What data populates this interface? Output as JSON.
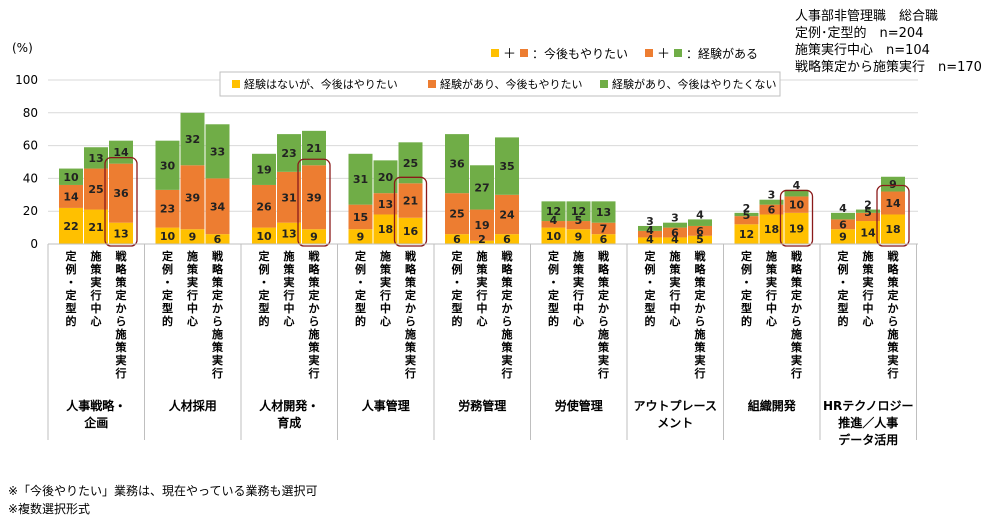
{
  "info_box": {
    "line1": "人事部非管理職　総合職",
    "line2": "定例･定型的　n=204",
    "line3": "施策実行中心　n=104",
    "line4": "戦略策定から施策実行　n=170"
  },
  "notes": {
    "note1": "※「今後やりたい」業務は、現在やっている業務も選択可",
    "note2": "※複数選択形式"
  },
  "colors": {
    "yellow": "#FFC000",
    "orange": "#ED7D31",
    "green": "#70AD47",
    "highlight": "#8B1A1A",
    "grid": "#D9D9D9"
  },
  "chart_data": {
    "type": "bar",
    "stacked": true,
    "y_unit_label": "(%)",
    "ylim": [
      0,
      100
    ],
    "yticks": [
      "100",
      "80",
      "60",
      "40",
      "20",
      "0"
    ],
    "top_legend": {
      "plus": "＋",
      "want_label": "：今後もやりたい",
      "exp_label": "：経験がある"
    },
    "legend": [
      "経験はないが、今後はやりたい",
      "経験があり、今後もやりたい",
      "経験があり、今後はやりたくない"
    ],
    "subgroups": [
      "定例・定型的",
      "施策実行中心",
      "戦略策定から施策実行"
    ],
    "groups": [
      {
        "name_lines": [
          "人事戦略・",
          "企画"
        ],
        "bars": [
          [
            22,
            14,
            10
          ],
          [
            21,
            25,
            13
          ],
          [
            13,
            36,
            14
          ]
        ],
        "highlight": 2
      },
      {
        "name_lines": [
          "人材採用"
        ],
        "bars": [
          [
            10,
            23,
            30
          ],
          [
            9,
            39,
            32
          ],
          [
            6,
            34,
            33
          ]
        ],
        "highlight": -1
      },
      {
        "name_lines": [
          "人材開発・",
          "育成"
        ],
        "bars": [
          [
            10,
            26,
            19
          ],
          [
            13,
            31,
            23
          ],
          [
            9,
            39,
            21
          ]
        ],
        "highlight": 2
      },
      {
        "name_lines": [
          "人事管理"
        ],
        "bars": [
          [
            9,
            15,
            31
          ],
          [
            18,
            13,
            20
          ],
          [
            16,
            21,
            25
          ]
        ],
        "highlight": 2
      },
      {
        "name_lines": [
          "労務管理"
        ],
        "bars": [
          [
            6,
            25,
            36
          ],
          [
            2,
            19,
            27
          ],
          [
            6,
            24,
            35
          ]
        ],
        "highlight": -1
      },
      {
        "name_lines": [
          "労使管理"
        ],
        "bars": [
          [
            10,
            4,
            12
          ],
          [
            9,
            5,
            12
          ],
          [
            6,
            7,
            13
          ]
        ],
        "highlight": -1
      },
      {
        "name_lines": [
          "アウトプレース",
          "メント"
        ],
        "bars": [
          [
            4,
            4,
            3
          ],
          [
            4,
            6,
            3
          ],
          [
            5,
            6,
            4
          ]
        ],
        "highlight": -1
      },
      {
        "name_lines": [
          "組織開発"
        ],
        "bars": [
          [
            12,
            5,
            2
          ],
          [
            18,
            6,
            3
          ],
          [
            19,
            10,
            4
          ]
        ],
        "highlight": 2
      },
      {
        "name_lines": [
          "HRテクノロジー",
          "推進／人事",
          "データ活用"
        ],
        "bars": [
          [
            9,
            6,
            4
          ],
          [
            14,
            5,
            2
          ],
          [
            18,
            14,
            9
          ]
        ],
        "highlight": 2
      }
    ]
  }
}
